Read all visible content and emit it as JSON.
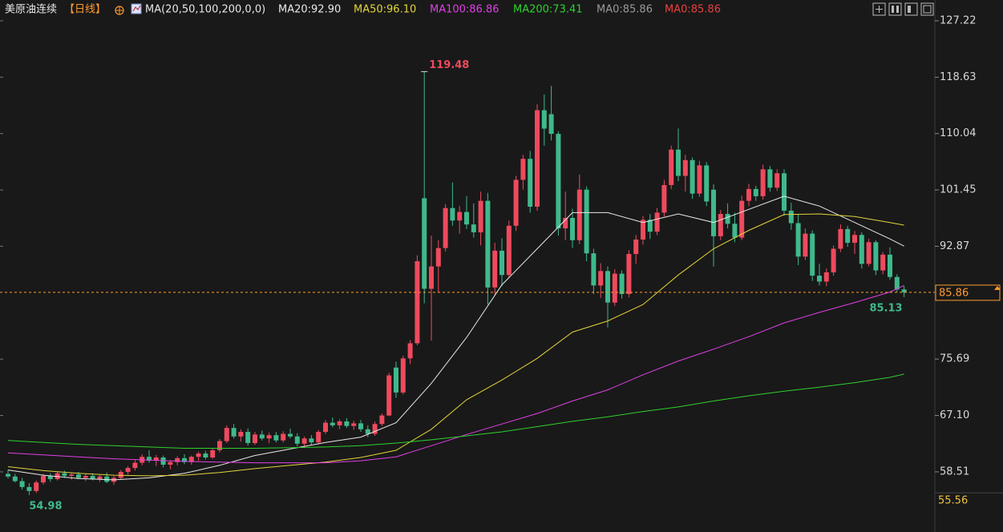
{
  "chart_data": {
    "type": "candlestick",
    "title": "美原油连续",
    "period": "【日线】",
    "indicator": "MA(20,50,100,200,0,0)",
    "up_color": "#ee4a5e",
    "down_color": "#3fb98c",
    "last_price_color": "#ff9a2e",
    "ylim": [
      49.35,
      130.39
    ],
    "yticks": [
      127.22,
      118.63,
      110.04,
      101.45,
      92.87,
      75.69,
      {
        "value": 67.1,
        "label": "67.10"
      },
      58.51
    ],
    "bottom_price": 55.56,
    "candles": [
      [
        58.2,
        58.8,
        57.5,
        57.8
      ],
      [
        57.8,
        58.2,
        56.9,
        57.1
      ],
      [
        57.1,
        57.6,
        55.8,
        56.2
      ],
      [
        56.2,
        56.8,
        54.98,
        55.6
      ],
      [
        55.6,
        57.2,
        55.3,
        56.9
      ],
      [
        56.9,
        58.2,
        56.6,
        57.9
      ],
      [
        57.9,
        58.3,
        57.0,
        57.4
      ],
      [
        57.4,
        58.6,
        57.2,
        58.3
      ],
      [
        58.3,
        58.7,
        57.6,
        57.9
      ],
      [
        57.9,
        58.4,
        57.3,
        58.1
      ],
      [
        58.1,
        58.5,
        57.4,
        57.6
      ],
      [
        57.6,
        58.2,
        57.1,
        57.9
      ],
      [
        57.9,
        58.3,
        57.2,
        57.4
      ],
      [
        57.4,
        58.1,
        57.0,
        57.8
      ],
      [
        57.8,
        58.4,
        56.8,
        57.0
      ],
      [
        57.0,
        57.9,
        56.5,
        57.6
      ],
      [
        57.6,
        58.8,
        57.3,
        58.5
      ],
      [
        58.5,
        59.4,
        58.1,
        59.1
      ],
      [
        59.1,
        60.3,
        58.7,
        59.9
      ],
      [
        59.9,
        61.2,
        59.5,
        60.8
      ],
      [
        60.8,
        61.8,
        59.9,
        60.2
      ],
      [
        60.2,
        61.1,
        59.4,
        60.7
      ],
      [
        60.7,
        61.0,
        59.2,
        59.6
      ],
      [
        59.6,
        60.3,
        58.9,
        60.0
      ],
      [
        60.0,
        60.9,
        59.5,
        60.6
      ],
      [
        60.6,
        61.2,
        59.7,
        60.0
      ],
      [
        60.0,
        61.0,
        59.6,
        60.8
      ],
      [
        60.8,
        61.6,
        60.2,
        61.3
      ],
      [
        61.3,
        61.7,
        60.4,
        60.7
      ],
      [
        60.7,
        62.1,
        60.5,
        61.8
      ],
      [
        61.8,
        63.5,
        61.5,
        63.2
      ],
      [
        63.2,
        65.6,
        62.9,
        65.2
      ],
      [
        65.2,
        65.8,
        63.6,
        63.9
      ],
      [
        63.9,
        65.0,
        63.1,
        64.6
      ],
      [
        64.6,
        65.1,
        62.5,
        62.9
      ],
      [
        62.9,
        64.6,
        62.6,
        64.2
      ],
      [
        64.2,
        64.8,
        63.3,
        63.6
      ],
      [
        63.6,
        64.5,
        62.9,
        64.1
      ],
      [
        64.1,
        64.6,
        63.0,
        63.3
      ],
      [
        63.3,
        64.7,
        63.0,
        64.3
      ],
      [
        64.3,
        65.1,
        63.6,
        63.9
      ],
      [
        63.9,
        64.4,
        62.4,
        62.8
      ],
      [
        62.8,
        63.9,
        62.2,
        63.6
      ],
      [
        63.6,
        64.1,
        62.6,
        63.0
      ],
      [
        63.0,
        64.9,
        62.7,
        64.6
      ],
      [
        64.6,
        66.4,
        64.3,
        66.0
      ],
      [
        66.0,
        66.8,
        65.3,
        65.6
      ],
      [
        65.6,
        66.5,
        65.0,
        66.2
      ],
      [
        66.2,
        66.7,
        65.2,
        65.5
      ],
      [
        65.5,
        66.3,
        64.9,
        65.9
      ],
      [
        65.9,
        66.4,
        64.6,
        65.0
      ],
      [
        65.0,
        65.6,
        63.8,
        64.3
      ],
      [
        64.3,
        66.2,
        64.0,
        65.8
      ],
      [
        65.8,
        67.4,
        65.5,
        67.1
      ],
      [
        67.1,
        73.6,
        67.0,
        73.2
      ],
      [
        74.4,
        75.3,
        69.8,
        70.6
      ],
      [
        70.6,
        76.2,
        70.3,
        75.8
      ],
      [
        75.8,
        78.6,
        74.9,
        78.1
      ],
      [
        78.1,
        91.5,
        77.8,
        90.6
      ],
      [
        100.2,
        119.48,
        84.2,
        86.4
      ],
      [
        86.4,
        94.5,
        78.5,
        89.8
      ],
      [
        89.8,
        93.8,
        85.8,
        92.6
      ],
      [
        92.6,
        99.3,
        92.1,
        98.7
      ],
      [
        98.7,
        102.6,
        96.0,
        96.8
      ],
      [
        96.8,
        99.0,
        94.8,
        98.1
      ],
      [
        98.1,
        100.5,
        95.5,
        96.2
      ],
      [
        96.2,
        99.4,
        94.2,
        95.0
      ],
      [
        95.0,
        101.2,
        93.0,
        99.8
      ],
      [
        99.8,
        101.0,
        84.0,
        86.6
      ],
      [
        86.6,
        93.4,
        85.5,
        92.2
      ],
      [
        92.2,
        94.1,
        86.8,
        88.5
      ],
      [
        88.5,
        96.8,
        88.0,
        96.0
      ],
      [
        96.0,
        103.6,
        95.2,
        103.0
      ],
      [
        103.0,
        106.8,
        101.5,
        106.2
      ],
      [
        106.2,
        107.4,
        98.0,
        98.9
      ],
      [
        98.9,
        114.5,
        98.3,
        113.6
      ],
      [
        113.6,
        116.0,
        108.2,
        110.8
      ],
      [
        113.0,
        117.3,
        109.0,
        110.0
      ],
      [
        110.0,
        110.4,
        94.5,
        95.6
      ],
      [
        95.6,
        101.2,
        93.8,
        97.2
      ],
      [
        97.2,
        98.6,
        92.6,
        93.8
      ],
      [
        93.8,
        103.8,
        93.2,
        101.5
      ],
      [
        101.5,
        102.0,
        90.6,
        91.8
      ],
      [
        91.8,
        92.5,
        85.6,
        86.9
      ],
      [
        86.9,
        90.3,
        85.0,
        89.1
      ],
      [
        89.1,
        89.8,
        80.5,
        84.3
      ],
      [
        84.3,
        89.4,
        83.8,
        88.7
      ],
      [
        88.7,
        89.2,
        84.9,
        85.6
      ],
      [
        85.6,
        92.3,
        85.1,
        91.7
      ],
      [
        91.7,
        94.6,
        90.2,
        93.9
      ],
      [
        93.9,
        97.5,
        93.1,
        96.9
      ],
      [
        96.9,
        97.8,
        94.0,
        95.1
      ],
      [
        95.1,
        98.7,
        94.6,
        98.0
      ],
      [
        98.0,
        103.0,
        97.4,
        102.2
      ],
      [
        102.2,
        108.2,
        101.6,
        107.6
      ],
      [
        107.6,
        110.8,
        102.8,
        103.6
      ],
      [
        103.6,
        106.8,
        101.2,
        106.0
      ],
      [
        106.0,
        106.4,
        100.1,
        100.9
      ],
      [
        100.9,
        105.9,
        100.4,
        105.2
      ],
      [
        105.2,
        105.7,
        99.0,
        99.7
      ],
      [
        101.5,
        102.3,
        89.8,
        94.4
      ],
      [
        94.4,
        98.4,
        93.8,
        97.8
      ],
      [
        97.8,
        99.4,
        95.6,
        96.3
      ],
      [
        96.3,
        98.0,
        93.5,
        94.2
      ],
      [
        94.2,
        100.6,
        93.8,
        99.8
      ],
      [
        99.8,
        102.4,
        99.0,
        101.6
      ],
      [
        101.6,
        102.1,
        99.8,
        100.5
      ],
      [
        100.5,
        105.3,
        100.0,
        104.6
      ],
      [
        104.6,
        105.1,
        101.2,
        101.8
      ],
      [
        101.8,
        104.6,
        101.3,
        104.0
      ],
      [
        104.0,
        104.6,
        97.5,
        98.3
      ],
      [
        98.3,
        99.5,
        95.4,
        96.4
      ],
      [
        96.4,
        97.8,
        90.0,
        91.3
      ],
      [
        91.3,
        95.6,
        90.8,
        94.8
      ],
      [
        94.8,
        95.3,
        87.6,
        88.4
      ],
      [
        88.4,
        90.2,
        86.9,
        87.5
      ],
      [
        87.5,
        89.5,
        86.8,
        88.9
      ],
      [
        88.9,
        93.0,
        88.4,
        92.5
      ],
      [
        92.5,
        96.2,
        92.0,
        95.5
      ],
      [
        95.5,
        96.0,
        92.8,
        93.4
      ],
      [
        93.4,
        95.2,
        91.7,
        94.6
      ],
      [
        94.6,
        95.0,
        89.5,
        90.2
      ],
      [
        90.2,
        94.0,
        89.8,
        93.5
      ],
      [
        93.5,
        93.8,
        88.5,
        89.2
      ],
      [
        89.2,
        92.0,
        88.6,
        91.6
      ],
      [
        91.6,
        92.7,
        87.8,
        88.2
      ],
      [
        88.2,
        88.6,
        85.9,
        86.3
      ],
      [
        86.3,
        86.8,
        85.13,
        85.86
      ]
    ],
    "ma_x": [
      0,
      5,
      10,
      15,
      20,
      25,
      30,
      35,
      40,
      45,
      50,
      55,
      60,
      65,
      70,
      75,
      80,
      85,
      90,
      95,
      100,
      105,
      110,
      115,
      120,
      125,
      127
    ],
    "ma": [
      {
        "label": "MA20:92.90",
        "color": "#e8e8e8",
        "values": [
          58.8,
          58,
          57.5,
          57.3,
          57.6,
          58.3,
          59.5,
          61,
          62,
          63,
          63.8,
          66,
          72,
          79,
          87,
          92.5,
          98,
          98,
          96.5,
          97.8,
          96.5,
          98.5,
          100.5,
          99,
          96.5,
          94,
          92.9
        ]
      },
      {
        "label": "MA50:96.10",
        "color": "#e3d43a",
        "values": [
          59.3,
          58.7,
          58.3,
          58,
          57.9,
          58,
          58.4,
          59,
          59.5,
          60,
          60.7,
          61.8,
          65,
          69.5,
          72.5,
          75.8,
          79.8,
          81.5,
          84,
          88.5,
          92.5,
          95.3,
          97.7,
          97.8,
          97.4,
          96.5,
          96.1
        ]
      },
      {
        "label": "MA100:86.86",
        "color": "#e040e6",
        "values": [
          61.4,
          61.1,
          60.8,
          60.5,
          60.3,
          60.1,
          60,
          59.9,
          59.9,
          59.9,
          60.2,
          60.8,
          62.5,
          64.2,
          65.8,
          67.4,
          69.3,
          71,
          73.3,
          75.4,
          77.2,
          79.1,
          81.2,
          82.8,
          84.3,
          85.9,
          86.9
        ]
      },
      {
        "label": "MA200:73.41",
        "color": "#2ed12e",
        "values": [
          63.3,
          63,
          62.7,
          62.5,
          62.3,
          62.1,
          62.1,
          62.1,
          62.2,
          62.3,
          62.5,
          62.9,
          63.4,
          64,
          64.6,
          65.4,
          66.2,
          66.9,
          67.7,
          68.4,
          69.3,
          70.1,
          70.8,
          71.4,
          72.1,
          72.9,
          73.4
        ]
      },
      {
        "label": "MA0:85.86",
        "color": "#9a9a9a"
      },
      {
        "label": "MA0:85.86",
        "color": "#e8413f"
      }
    ]
  }
}
